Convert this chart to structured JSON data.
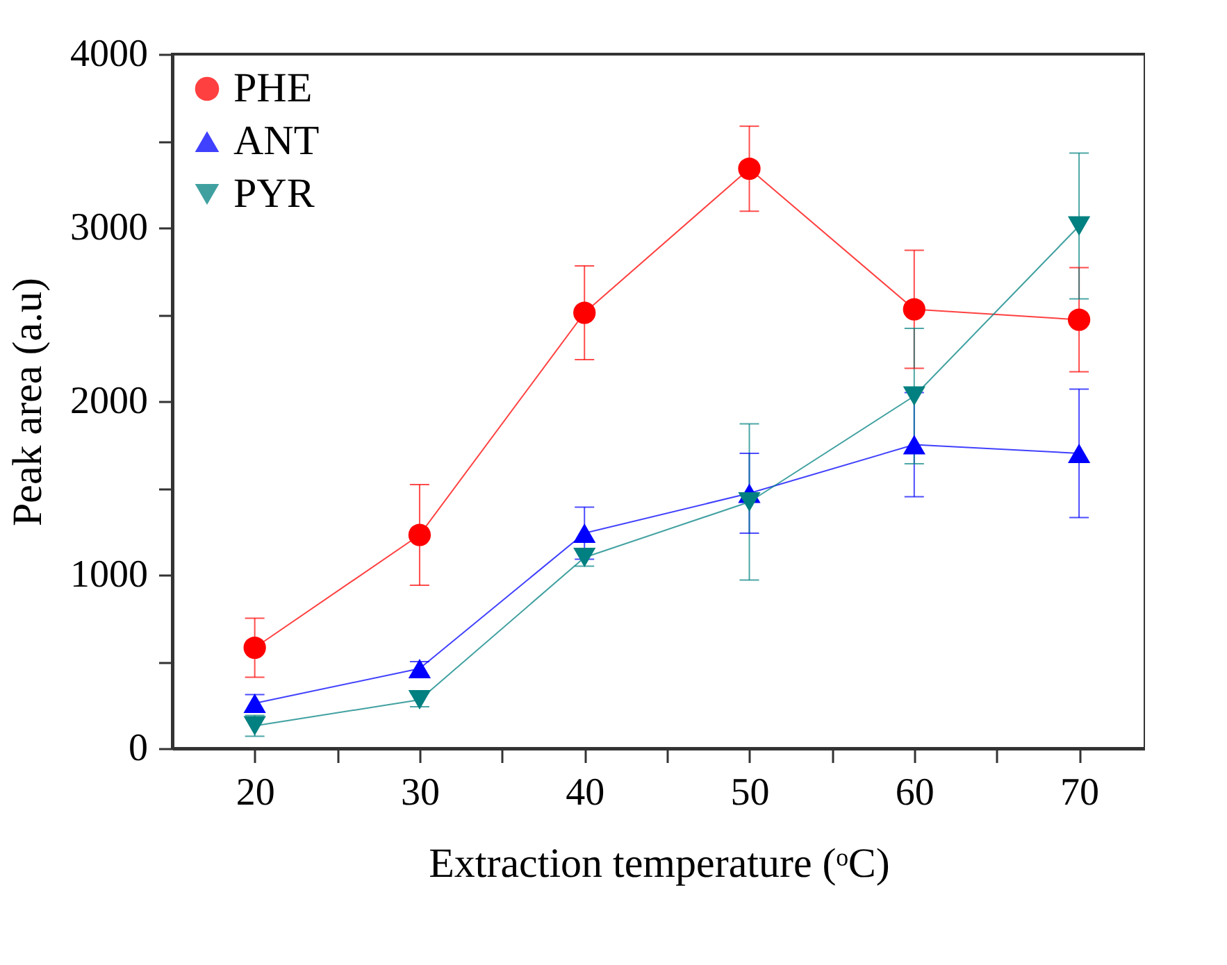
{
  "chart_data": {
    "type": "line",
    "xlabel": "Extraction temperature (ᵒC)",
    "ylabel": "Peak area (a.u)",
    "x": [
      20,
      30,
      40,
      50,
      60,
      70
    ],
    "xlim": [
      15,
      74
    ],
    "xticks": [
      20,
      {
        "value": 25,
        "label": null
      },
      30,
      {
        "value": 35,
        "label": null
      },
      40,
      {
        "value": 45,
        "label": null
      },
      50,
      {
        "value": 55,
        "label": null
      },
      60,
      {
        "value": 65,
        "label": null
      },
      70
    ],
    "ylim": [
      0,
      4000
    ],
    "yticks": [
      0,
      {
        "value": 500,
        "label": null
      },
      1000,
      {
        "value": 1500,
        "label": null
      },
      2000,
      {
        "value": 2500,
        "label": null
      },
      3000,
      {
        "value": 3500,
        "label": null
      },
      4000
    ],
    "grid": false,
    "legend": "top left",
    "line_style": "solid",
    "series": [
      {
        "name": "PHE",
        "color": "#ff0000",
        "marker": "circle",
        "values": [
          580,
          1230,
          2510,
          3340,
          2530,
          2470
        ],
        "errors": [
          170,
          290,
          270,
          245,
          340,
          300
        ]
      },
      {
        "name": "ANT",
        "color": "#0000ff",
        "marker": "triangle",
        "values": [
          260,
          460,
          1240,
          1470,
          1750,
          1700
        ],
        "errors": [
          50,
          40,
          150,
          230,
          300,
          370
        ]
      },
      {
        "name": "PYR",
        "color": "#008080",
        "marker": "triangle-down",
        "values": [
          130,
          280,
          1100,
          1420,
          2030,
          3010
        ],
        "errors": [
          60,
          40,
          50,
          450,
          390,
          420
        ]
      }
    ]
  }
}
